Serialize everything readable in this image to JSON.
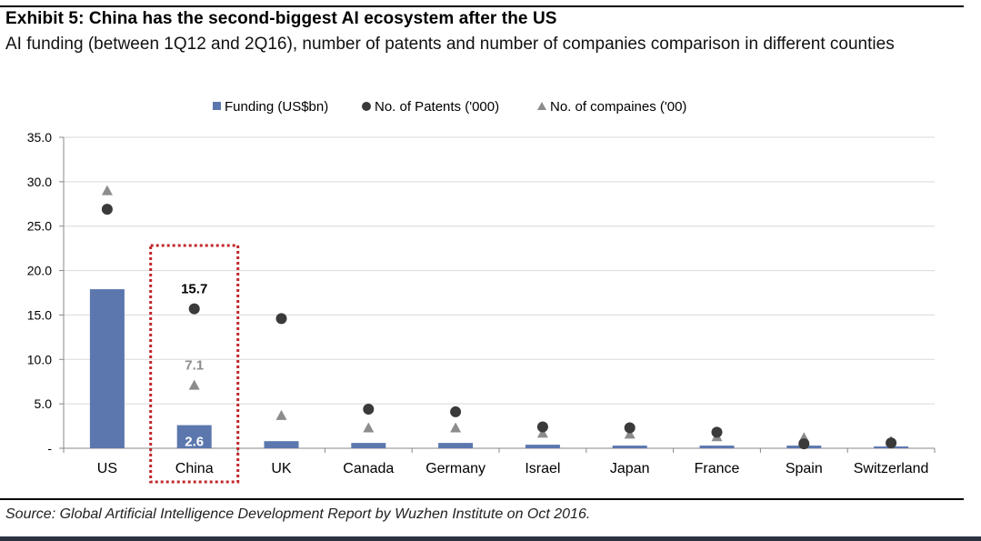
{
  "header": {
    "title": "Exhibit 5: China has the second-biggest AI ecosystem after the US",
    "subtitle": "AI funding (between 1Q12 and 2Q16), number of patents and number of companies comparison in different counties"
  },
  "footer": {
    "source": "Source: Global Artificial Intelligence Development Report by Wuzhen Institute on Oct 2016."
  },
  "colors": {
    "bar": "#5b77ae",
    "patents": "#3a3a3a",
    "companies": "#8c8c8c",
    "highlight": "#c0282b",
    "grid": "#d9d9d9"
  },
  "chart_data": {
    "type": "bar",
    "categories": [
      "US",
      "China",
      "UK",
      "Canada",
      "Germany",
      "Israel",
      "Japan",
      "France",
      "Spain",
      "Switzerland"
    ],
    "series": [
      {
        "name": "Funding (US$bn)",
        "type": "bar",
        "marker": "square",
        "values": [
          17.9,
          2.6,
          0.8,
          0.6,
          0.6,
          0.4,
          0.3,
          0.3,
          0.3,
          0.2
        ]
      },
      {
        "name": "No. of Patents ('000)",
        "type": "scatter",
        "marker": "circle",
        "values": [
          26.9,
          15.7,
          14.6,
          4.4,
          4.1,
          2.4,
          2.3,
          1.8,
          0.5,
          0.6
        ]
      },
      {
        "name": "No. of compaines ('00)",
        "type": "scatter",
        "marker": "triangle",
        "values": [
          29.0,
          7.1,
          3.7,
          2.3,
          2.3,
          1.7,
          1.6,
          1.3,
          1.2,
          0.8
        ]
      }
    ],
    "ylim": [
      0,
      35
    ],
    "yticks": [
      "-",
      "5.0",
      "10.0",
      "15.0",
      "20.0",
      "25.0",
      "30.0",
      "35.0"
    ],
    "grid": true,
    "legend_position": "top-center",
    "data_labels": [
      {
        "category": "China",
        "series": "No. of Patents ('000)",
        "text": "15.7"
      },
      {
        "category": "China",
        "series": "No. of compaines ('00)",
        "text": "7.1"
      },
      {
        "category": "China",
        "series": "Funding (US$bn)",
        "text": "2.6"
      }
    ],
    "highlight_category": "China"
  }
}
